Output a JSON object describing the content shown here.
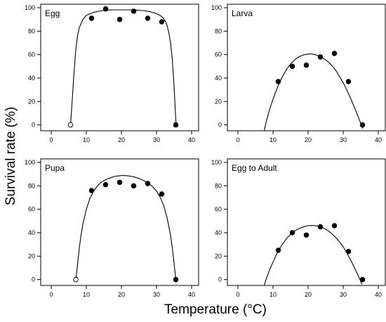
{
  "figure": {
    "ylabel": "Survival rate (%)",
    "xlabel": "Temperature (°C)"
  },
  "chart_data": [
    {
      "type": "scatter",
      "panel_label": "Egg",
      "xlim": [
        -3,
        42
      ],
      "ylim": [
        -5,
        103
      ],
      "xticks": [
        0,
        10,
        20,
        30,
        40
      ],
      "yticks": [
        0,
        20,
        40,
        60,
        80,
        100
      ],
      "points": [
        {
          "x": 5.5,
          "y": 0,
          "filled": false
        },
        {
          "x": 11.5,
          "y": 91,
          "filled": true
        },
        {
          "x": 15.5,
          "y": 99,
          "filled": true
        },
        {
          "x": 19.5,
          "y": 90,
          "filled": true
        },
        {
          "x": 23.5,
          "y": 97,
          "filled": true
        },
        {
          "x": 27.5,
          "y": 91,
          "filled": true
        },
        {
          "x": 31.5,
          "y": 88,
          "filled": true
        },
        {
          "x": 35.5,
          "y": 0,
          "filled": true
        }
      ],
      "fit_curve": [
        [
          5.5,
          0
        ],
        [
          6,
          22
        ],
        [
          6.5,
          45
        ],
        [
          7,
          64
        ],
        [
          7.5,
          76
        ],
        [
          8,
          83
        ],
        [
          9,
          90
        ],
        [
          10,
          93.5
        ],
        [
          12,
          96
        ],
        [
          14,
          97.3
        ],
        [
          16,
          98
        ],
        [
          18,
          98.2
        ],
        [
          20,
          98.2
        ],
        [
          22,
          98.2
        ],
        [
          24,
          98
        ],
        [
          26,
          97.6
        ],
        [
          28,
          96.8
        ],
        [
          30,
          95
        ],
        [
          31,
          93.5
        ],
        [
          32,
          91
        ],
        [
          32.5,
          88.5
        ],
        [
          33,
          85
        ],
        [
          33.5,
          79
        ],
        [
          34,
          70
        ],
        [
          34.5,
          56
        ],
        [
          35,
          33
        ],
        [
          35.4,
          10
        ],
        [
          35.6,
          0
        ]
      ]
    },
    {
      "type": "scatter",
      "panel_label": "Larva",
      "xlim": [
        -3,
        42
      ],
      "ylim": [
        -5,
        103
      ],
      "xticks": [
        0,
        10,
        20,
        30,
        40
      ],
      "yticks": [
        0,
        20,
        40,
        60,
        80,
        100
      ],
      "points": [
        {
          "x": 11.5,
          "y": 37,
          "filled": true
        },
        {
          "x": 15.5,
          "y": 50,
          "filled": true
        },
        {
          "x": 19.5,
          "y": 51,
          "filled": true
        },
        {
          "x": 23.5,
          "y": 58,
          "filled": true
        },
        {
          "x": 27.5,
          "y": 61,
          "filled": true
        },
        {
          "x": 31.5,
          "y": 37,
          "filled": true
        },
        {
          "x": 35.5,
          "y": 0,
          "filled": true
        }
      ],
      "fit_curve": [
        [
          7.5,
          -5
        ],
        [
          8,
          2
        ],
        [
          9,
          13
        ],
        [
          10,
          22
        ],
        [
          11,
          30
        ],
        [
          12,
          37
        ],
        [
          13,
          43
        ],
        [
          14,
          48
        ],
        [
          15,
          52
        ],
        [
          16,
          55
        ],
        [
          17,
          57.5
        ],
        [
          18,
          59
        ],
        [
          19,
          60
        ],
        [
          20,
          60.5
        ],
        [
          21,
          60.5
        ],
        [
          22,
          60
        ],
        [
          23,
          59
        ],
        [
          24,
          57.5
        ],
        [
          25,
          55.5
        ],
        [
          26,
          53
        ],
        [
          27,
          50
        ],
        [
          28,
          46
        ],
        [
          29,
          41
        ],
        [
          30,
          36
        ],
        [
          31,
          30
        ],
        [
          32,
          23.5
        ],
        [
          33,
          16.5
        ],
        [
          34,
          9
        ],
        [
          35,
          1.5
        ],
        [
          35.5,
          -3
        ]
      ]
    },
    {
      "type": "scatter",
      "panel_label": "Pupa",
      "xlim": [
        -3,
        42
      ],
      "ylim": [
        -5,
        103
      ],
      "xticks": [
        0,
        10,
        20,
        30,
        40
      ],
      "yticks": [
        0,
        20,
        40,
        60,
        80,
        100
      ],
      "points": [
        {
          "x": 7,
          "y": 0,
          "filled": false
        },
        {
          "x": 11.5,
          "y": 76,
          "filled": true
        },
        {
          "x": 15.5,
          "y": 81,
          "filled": true
        },
        {
          "x": 19.5,
          "y": 83,
          "filled": true
        },
        {
          "x": 23.5,
          "y": 80,
          "filled": true
        },
        {
          "x": 27.5,
          "y": 82,
          "filled": true
        },
        {
          "x": 31.5,
          "y": 73,
          "filled": true
        },
        {
          "x": 35.5,
          "y": 0,
          "filled": true
        }
      ],
      "fit_curve": [
        [
          7,
          0
        ],
        [
          7.5,
          13
        ],
        [
          8,
          27
        ],
        [
          8.5,
          38
        ],
        [
          9,
          47
        ],
        [
          10,
          60
        ],
        [
          11,
          69
        ],
        [
          12,
          75
        ],
        [
          13,
          79.5
        ],
        [
          14,
          82.5
        ],
        [
          15,
          84.5
        ],
        [
          16,
          86
        ],
        [
          17,
          87
        ],
        [
          18,
          88
        ],
        [
          19,
          88.5
        ],
        [
          20,
          88.8
        ],
        [
          21,
          88.8
        ],
        [
          22,
          88.5
        ],
        [
          23,
          88
        ],
        [
          24,
          87.3
        ],
        [
          25,
          86.3
        ],
        [
          26,
          85
        ],
        [
          27,
          83.5
        ],
        [
          28,
          81.5
        ],
        [
          29,
          79
        ],
        [
          30,
          75.5
        ],
        [
          31,
          70.5
        ],
        [
          32,
          63.5
        ],
        [
          33,
          53
        ],
        [
          34,
          38
        ],
        [
          34.5,
          27
        ],
        [
          35,
          14
        ],
        [
          35.4,
          3
        ],
        [
          35.6,
          -2
        ]
      ]
    },
    {
      "type": "scatter",
      "panel_label": "Egg to Adult",
      "xlim": [
        -3,
        42
      ],
      "ylim": [
        -5,
        103
      ],
      "xticks": [
        0,
        10,
        20,
        30,
        40
      ],
      "yticks": [
        0,
        20,
        40,
        60,
        80,
        100
      ],
      "points": [
        {
          "x": 11.5,
          "y": 25,
          "filled": true
        },
        {
          "x": 15.5,
          "y": 40,
          "filled": true
        },
        {
          "x": 19.5,
          "y": 38,
          "filled": true
        },
        {
          "x": 23.5,
          "y": 45,
          "filled": true
        },
        {
          "x": 27.5,
          "y": 46,
          "filled": true
        },
        {
          "x": 31.5,
          "y": 24,
          "filled": true
        },
        {
          "x": 35.5,
          "y": 0,
          "filled": true
        }
      ],
      "fit_curve": [
        [
          7.5,
          -5
        ],
        [
          8,
          0
        ],
        [
          9,
          8
        ],
        [
          10,
          15
        ],
        [
          11,
          21.5
        ],
        [
          12,
          27
        ],
        [
          13,
          31.5
        ],
        [
          14,
          35.5
        ],
        [
          15,
          38.5
        ],
        [
          16,
          41
        ],
        [
          17,
          43
        ],
        [
          18,
          44.3
        ],
        [
          19,
          45.3
        ],
        [
          20,
          46
        ],
        [
          21,
          46.2
        ],
        [
          22,
          46
        ],
        [
          23,
          45.5
        ],
        [
          24,
          44.5
        ],
        [
          25,
          43
        ],
        [
          26,
          41
        ],
        [
          27,
          38.5
        ],
        [
          28,
          35.5
        ],
        [
          29,
          32
        ],
        [
          30,
          28
        ],
        [
          31,
          23
        ],
        [
          32,
          17.5
        ],
        [
          33,
          11.5
        ],
        [
          34,
          5
        ],
        [
          35,
          -1.5
        ],
        [
          35.3,
          -4
        ]
      ]
    }
  ]
}
